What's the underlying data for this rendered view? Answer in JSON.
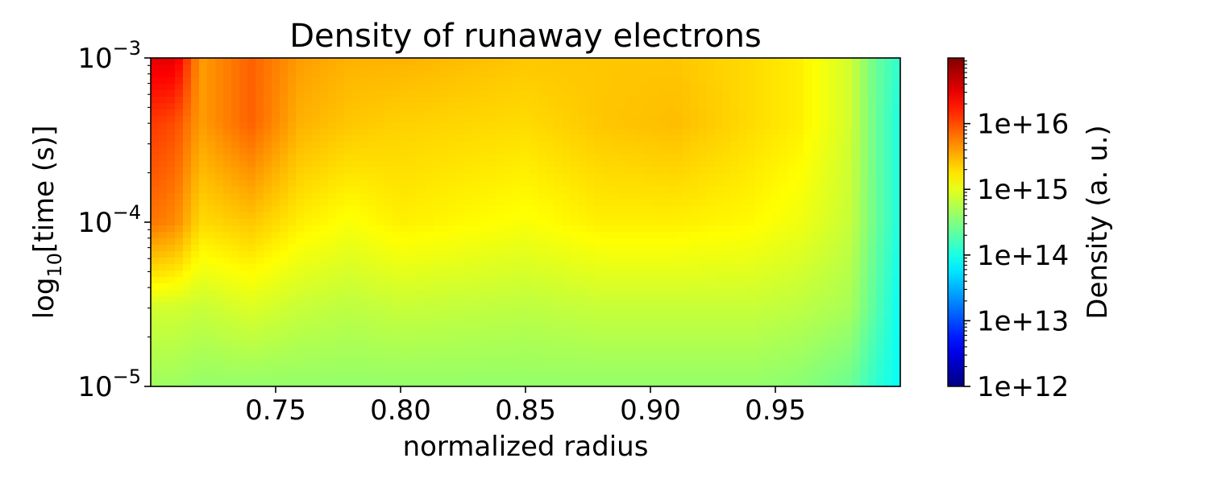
{
  "chart_data": {
    "type": "heatmap",
    "title": "Density of runaway electrons",
    "xlabel": "normalized radius",
    "ylabel": {
      "prefix": "log",
      "subscript": "10",
      "suffix": "[time (s)]"
    },
    "x_range": [
      0.7,
      1.0
    ],
    "xticks": [
      {
        "value": 0.75,
        "label": "0.75"
      },
      {
        "value": 0.8,
        "label": "0.80"
      },
      {
        "value": 0.85,
        "label": "0.85"
      },
      {
        "value": 0.9,
        "label": "0.90"
      },
      {
        "value": 0.95,
        "label": "0.95"
      }
    ],
    "y_scale": "log",
    "y_range": [
      1e-05,
      0.001
    ],
    "yticks": [
      {
        "value": 1e-05,
        "base": "10",
        "exponent": "−5"
      },
      {
        "value": 0.0001,
        "base": "10",
        "exponent": "−4"
      },
      {
        "value": 0.001,
        "base": "10",
        "exponent": "−3"
      }
    ],
    "colormap": "jet",
    "colorbar": {
      "label": "Density (a. u.)",
      "scale": "log",
      "range": [
        1000000000000.0,
        1e+17
      ],
      "ticks": [
        {
          "value": 1000000000000.0,
          "label": "1e+12"
        },
        {
          "value": 10000000000000.0,
          "label": "1e+13"
        },
        {
          "value": 100000000000000.0,
          "label": "1e+14"
        },
        {
          "value": 1000000000000000.0,
          "label": "1e+15"
        },
        {
          "value": 1e+16,
          "label": "1e+16"
        }
      ]
    },
    "approx_log10_density_by_time": {
      "radius": [
        0.7,
        0.71,
        0.72,
        0.74,
        0.76,
        0.78,
        0.8,
        0.85,
        0.88,
        0.91,
        0.94,
        0.96,
        0.98,
        0.99,
        1.0
      ],
      "rows": [
        {
          "time": 0.001,
          "values": [
            16.5,
            16.5,
            15.6,
            15.9,
            15.6,
            15.5,
            15.5,
            15.4,
            15.4,
            15.4,
            15.3,
            15.2,
            14.9,
            14.4,
            14.1
          ]
        },
        {
          "time": 0.0004,
          "values": [
            16.1,
            16.0,
            15.6,
            15.9,
            15.5,
            15.4,
            15.35,
            15.3,
            15.4,
            15.45,
            15.3,
            15.2,
            14.9,
            14.4,
            14.0
          ]
        },
        {
          "time": 0.0001,
          "values": [
            15.8,
            15.7,
            15.3,
            15.4,
            15.2,
            15.1,
            15.2,
            15.1,
            15.2,
            15.2,
            15.15,
            15.05,
            14.85,
            14.4,
            14.0
          ]
        },
        {
          "time": 3e-05,
          "values": [
            14.9,
            14.9,
            14.85,
            14.95,
            14.85,
            14.8,
            14.85,
            14.8,
            14.85,
            14.85,
            14.85,
            14.8,
            14.7,
            14.3,
            13.9
          ]
        },
        {
          "time": 1e-05,
          "values": [
            14.65,
            14.65,
            14.6,
            14.6,
            14.6,
            14.6,
            14.6,
            14.6,
            14.6,
            14.6,
            14.6,
            14.55,
            14.4,
            14.1,
            13.9
          ]
        }
      ]
    }
  }
}
